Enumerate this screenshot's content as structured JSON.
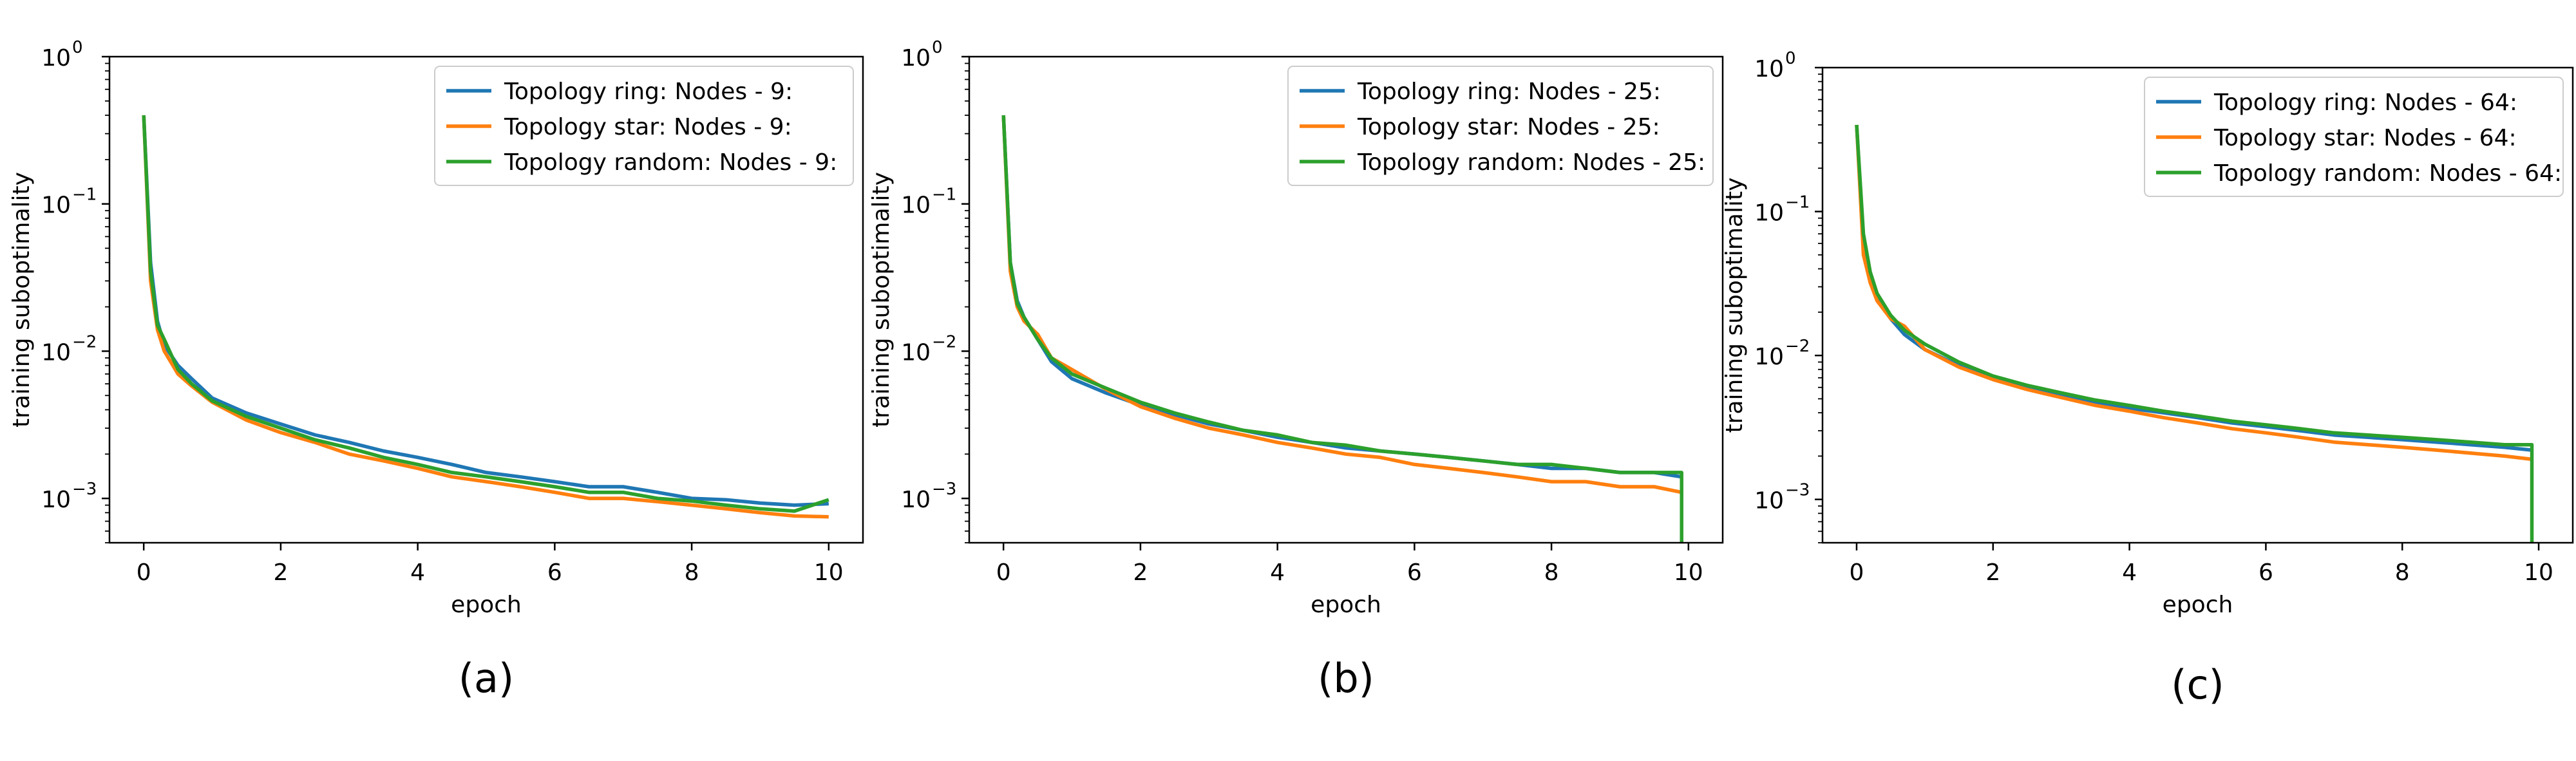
{
  "colors": {
    "ring": "#1f77b4",
    "star": "#ff7f0e",
    "random": "#2ca02c"
  },
  "captions": [
    "(a)",
    "(b)",
    "(c)"
  ],
  "chart_data": [
    {
      "type": "line",
      "caption": "(a)",
      "xlabel": "epoch",
      "ylabel": "training suboptimality",
      "yscale": "log",
      "xlim": [
        -0.5,
        10.5
      ],
      "ylim": [
        0.0005,
        1
      ],
      "xticks": [
        0,
        2,
        4,
        6,
        8,
        10
      ],
      "yticks": [
        {
          "v": 0.001,
          "e": "−3"
        },
        {
          "v": 0.01,
          "e": "−2"
        },
        {
          "v": 0.1,
          "e": "−1"
        },
        {
          "v": 1,
          "e": "0"
        }
      ],
      "grid": false,
      "legend_position": "top-right",
      "series": [
        {
          "name": "Topology ring: Nodes - 9:",
          "color_key": "ring",
          "x": [
            0,
            0.1,
            0.2,
            0.3,
            0.5,
            0.7,
            1.0,
            1.5,
            2.0,
            2.5,
            3.0,
            3.5,
            4.0,
            4.5,
            5.0,
            5.5,
            6.0,
            6.5,
            7.0,
            7.5,
            8.0,
            8.5,
            9.0,
            9.5,
            10.0
          ],
          "values": [
            0.4,
            0.04,
            0.016,
            0.011,
            0.008,
            0.0065,
            0.0048,
            0.0038,
            0.0032,
            0.0027,
            0.0024,
            0.0021,
            0.0019,
            0.0017,
            0.0015,
            0.0014,
            0.0013,
            0.0012,
            0.0012,
            0.0011,
            0.001,
            0.00098,
            0.00093,
            0.0009,
            0.00092
          ]
        },
        {
          "name": "Topology star: Nodes - 9:",
          "color_key": "star",
          "x": [
            0,
            0.1,
            0.2,
            0.3,
            0.5,
            0.7,
            1.0,
            1.5,
            2.0,
            2.5,
            3.0,
            3.5,
            4.0,
            4.5,
            5.0,
            5.5,
            6.0,
            6.5,
            7.0,
            7.5,
            8.0,
            8.5,
            9.0,
            9.5,
            10.0
          ],
          "values": [
            0.4,
            0.03,
            0.014,
            0.01,
            0.007,
            0.0058,
            0.0045,
            0.0034,
            0.0028,
            0.0024,
            0.002,
            0.0018,
            0.0016,
            0.0014,
            0.0013,
            0.0012,
            0.0011,
            0.001,
            0.001,
            0.00095,
            0.0009,
            0.00085,
            0.0008,
            0.00076,
            0.00075
          ]
        },
        {
          "name": "Topology random: Nodes - 9:",
          "color_key": "random",
          "x": [
            0,
            0.1,
            0.2,
            0.3,
            0.5,
            0.7,
            1.0,
            1.5,
            2.0,
            2.5,
            3.0,
            3.5,
            4.0,
            4.5,
            5.0,
            5.5,
            6.0,
            6.5,
            7.0,
            7.5,
            8.0,
            8.5,
            9.0,
            9.5,
            10.0
          ],
          "values": [
            0.4,
            0.035,
            0.015,
            0.012,
            0.0075,
            0.006,
            0.0046,
            0.0036,
            0.003,
            0.0025,
            0.0022,
            0.0019,
            0.0017,
            0.0015,
            0.0014,
            0.0013,
            0.0012,
            0.0011,
            0.0011,
            0.001,
            0.00096,
            0.0009,
            0.00085,
            0.00082,
            0.00098
          ]
        }
      ]
    },
    {
      "type": "line",
      "caption": "(b)",
      "xlabel": "epoch",
      "ylabel": "training suboptimality",
      "yscale": "log",
      "xlim": [
        -0.5,
        10.5
      ],
      "ylim": [
        0.0005,
        1
      ],
      "xticks": [
        0,
        2,
        4,
        6,
        8,
        10
      ],
      "yticks": [
        {
          "v": 0.001,
          "e": "−3"
        },
        {
          "v": 0.01,
          "e": "−2"
        },
        {
          "v": 0.1,
          "e": "−1"
        },
        {
          "v": 1,
          "e": "0"
        }
      ],
      "grid": false,
      "legend_position": "top-right",
      "series": [
        {
          "name": "Topology ring: Nodes - 25:",
          "color_key": "ring",
          "x": [
            0,
            0.1,
            0.2,
            0.3,
            0.5,
            0.7,
            1.0,
            1.5,
            2.0,
            2.5,
            3.0,
            3.5,
            4.0,
            4.5,
            5.0,
            5.5,
            6.0,
            6.5,
            7.0,
            7.5,
            8.0,
            8.5,
            9.0,
            9.5,
            9.9
          ],
          "values": [
            0.4,
            0.04,
            0.022,
            0.017,
            0.012,
            0.0085,
            0.0065,
            0.0052,
            0.0043,
            0.0037,
            0.0032,
            0.0029,
            0.0026,
            0.0024,
            0.0022,
            0.0021,
            0.002,
            0.0019,
            0.0018,
            0.0017,
            0.0016,
            0.0016,
            0.0015,
            0.0015,
            0.0014
          ]
        },
        {
          "name": "Topology star: Nodes - 25:",
          "color_key": "star",
          "x": [
            0,
            0.1,
            0.2,
            0.3,
            0.5,
            0.7,
            1.0,
            1.5,
            2.0,
            2.5,
            3.0,
            3.5,
            4.0,
            4.5,
            5.0,
            5.5,
            6.0,
            6.5,
            7.0,
            7.5,
            8.0,
            8.5,
            9.0,
            9.5,
            9.9
          ],
          "values": [
            0.4,
            0.035,
            0.02,
            0.016,
            0.013,
            0.009,
            0.0075,
            0.0055,
            0.0042,
            0.0035,
            0.003,
            0.0027,
            0.0024,
            0.0022,
            0.002,
            0.0019,
            0.0017,
            0.0016,
            0.0015,
            0.0014,
            0.0013,
            0.0013,
            0.0012,
            0.0012,
            0.0011
          ]
        },
        {
          "name": "Topology random: Nodes - 25:",
          "color_key": "random",
          "x": [
            0,
            0.1,
            0.2,
            0.3,
            0.5,
            0.7,
            1.0,
            1.5,
            2.0,
            2.5,
            3.0,
            3.5,
            4.0,
            4.5,
            5.0,
            5.5,
            6.0,
            6.5,
            7.0,
            7.5,
            8.0,
            8.5,
            9.0,
            9.5,
            9.9,
            9.9
          ],
          "values": [
            0.4,
            0.04,
            0.021,
            0.017,
            0.012,
            0.009,
            0.007,
            0.0056,
            0.0045,
            0.0038,
            0.0033,
            0.0029,
            0.0027,
            0.0024,
            0.0023,
            0.0021,
            0.002,
            0.0019,
            0.0018,
            0.0017,
            0.0017,
            0.0016,
            0.0015,
            0.0015,
            0.0015,
            0.0005
          ]
        }
      ]
    },
    {
      "type": "line",
      "caption": "(c)",
      "xlabel": "epoch",
      "ylabel": "training suboptimality",
      "yscale": "log",
      "xlim": [
        -0.5,
        10.5
      ],
      "ylim": [
        0.0005,
        1
      ],
      "xticks": [
        0,
        2,
        4,
        6,
        8,
        10
      ],
      "yticks": [
        {
          "v": 0.001,
          "e": "−3"
        },
        {
          "v": 0.01,
          "e": "−2"
        },
        {
          "v": 0.1,
          "e": "−1"
        },
        {
          "v": 1,
          "e": "0"
        }
      ],
      "grid": false,
      "legend_position": "top-right",
      "series": [
        {
          "name": "Topology ring: Nodes - 64:",
          "color_key": "ring",
          "x": [
            0,
            0.1,
            0.2,
            0.3,
            0.5,
            0.7,
            1.0,
            1.5,
            2.0,
            2.5,
            3.0,
            3.5,
            4.0,
            4.5,
            5.0,
            5.5,
            6.0,
            6.5,
            7.0,
            7.5,
            8.0,
            8.5,
            9.0,
            9.5,
            9.9
          ],
          "values": [
            0.4,
            0.06,
            0.035,
            0.025,
            0.018,
            0.014,
            0.011,
            0.0085,
            0.007,
            0.006,
            0.0053,
            0.0047,
            0.0043,
            0.004,
            0.0037,
            0.0034,
            0.0032,
            0.003,
            0.0028,
            0.0027,
            0.0026,
            0.0025,
            0.0024,
            0.0023,
            0.0022
          ]
        },
        {
          "name": "Topology star: Nodes - 64:",
          "color_key": "star",
          "x": [
            0,
            0.1,
            0.2,
            0.3,
            0.5,
            0.7,
            1.0,
            1.5,
            2.0,
            2.5,
            3.0,
            3.5,
            4.0,
            4.5,
            5.0,
            5.5,
            6.0,
            6.5,
            7.0,
            7.5,
            8.0,
            8.5,
            9.0,
            9.5,
            9.9
          ],
          "values": [
            0.4,
            0.05,
            0.032,
            0.024,
            0.018,
            0.016,
            0.011,
            0.0083,
            0.0068,
            0.0058,
            0.0051,
            0.0045,
            0.0041,
            0.0037,
            0.0034,
            0.0031,
            0.0029,
            0.0027,
            0.0025,
            0.0024,
            0.0023,
            0.0022,
            0.0021,
            0.002,
            0.0019
          ]
        },
        {
          "name": "Topology random: Nodes - 64:",
          "color_key": "random",
          "x": [
            0,
            0.1,
            0.2,
            0.3,
            0.5,
            0.7,
            1.0,
            1.5,
            2.0,
            2.5,
            3.0,
            3.5,
            4.0,
            4.5,
            5.0,
            5.5,
            6.0,
            6.5,
            7.0,
            7.5,
            8.0,
            8.5,
            9.0,
            9.5,
            9.9,
            9.9
          ],
          "values": [
            0.4,
            0.07,
            0.038,
            0.027,
            0.019,
            0.015,
            0.012,
            0.009,
            0.0072,
            0.0062,
            0.0055,
            0.0049,
            0.0045,
            0.0041,
            0.0038,
            0.0035,
            0.0033,
            0.0031,
            0.0029,
            0.0028,
            0.0027,
            0.0026,
            0.0025,
            0.0024,
            0.0024,
            0.0005
          ]
        }
      ]
    }
  ]
}
